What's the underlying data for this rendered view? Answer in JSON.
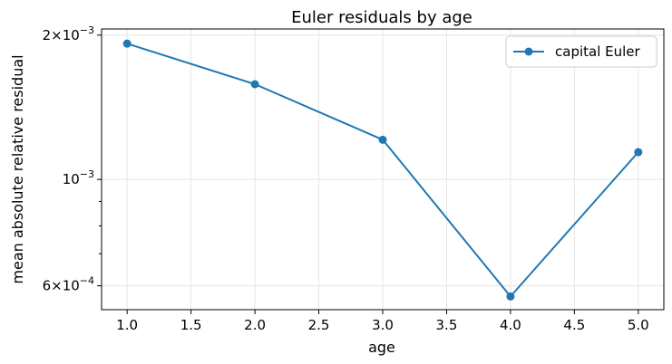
{
  "chart_data": {
    "type": "line",
    "title": "Euler residuals by age",
    "xlabel": "age",
    "ylabel": "mean absolute relative residual",
    "x": [
      1.0,
      2.0,
      3.0,
      4.0,
      5.0
    ],
    "series": [
      {
        "name": "capital Euler",
        "values": [
          0.00192,
          0.00158,
          0.00121,
          0.00057,
          0.00114
        ],
        "color": "#1f77b4"
      }
    ],
    "xlim": [
      0.8,
      5.2
    ],
    "ylim": [
      0.000535,
      0.00206
    ],
    "y_scale": "log",
    "x_ticks": [
      "1.0",
      "1.5",
      "2.0",
      "2.5",
      "3.0",
      "3.5",
      "4.0",
      "4.5",
      "5.0"
    ],
    "y_major_ticks": [
      {
        "value": 0.002,
        "mantissa": "2",
        "times": "×",
        "base": "10",
        "exponent": "−3"
      },
      {
        "value": 0.001,
        "mantissa": "",
        "times": "",
        "base": "10",
        "exponent": "−3"
      },
      {
        "value": 0.0006,
        "mantissa": "6",
        "times": "×",
        "base": "10",
        "exponent": "−4"
      }
    ],
    "y_minor_ticks": [
      0.0007,
      0.0008,
      0.0009
    ],
    "grid": true,
    "legend_position": "top-right"
  }
}
